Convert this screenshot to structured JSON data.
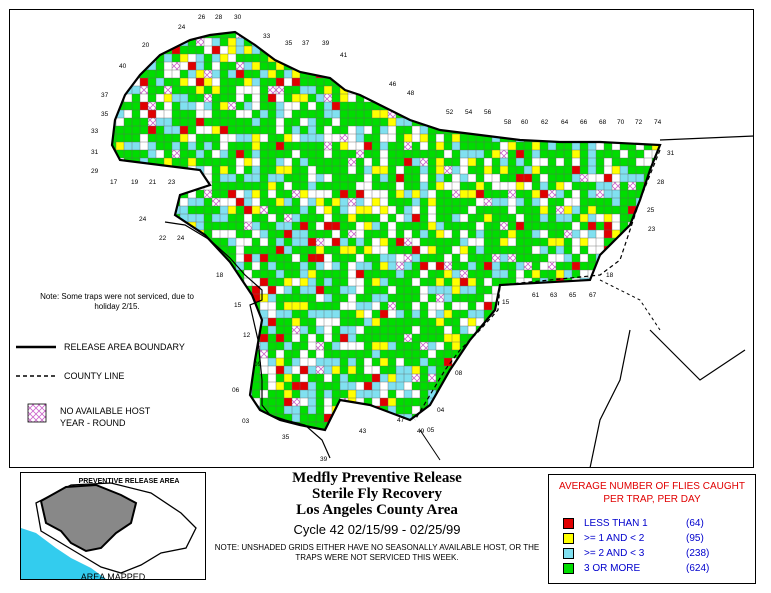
{
  "map": {
    "note": "Note: Some traps were not serviced, due to holiday 2/15.",
    "legend_lines": {
      "release_boundary": "RELEASE AREA BOUNDARY",
      "county_line": "COUNTY LINE",
      "no_host": "NO AVAILABLE HOST YEAR - ROUND"
    },
    "grid_labels": [
      "24",
      "26",
      "28",
      "30",
      "20",
      "33",
      "35",
      "37",
      "39",
      "41",
      "40",
      "37",
      "35",
      "46",
      "48",
      "33",
      "31",
      "29",
      "17",
      "19",
      "21",
      "23",
      "52",
      "54",
      "56",
      "58",
      "60",
      "62",
      "64",
      "66",
      "68",
      "70",
      "72",
      "74",
      "31",
      "28",
      "24",
      "25",
      "22",
      "24",
      "23",
      "18",
      "18",
      "15",
      "61",
      "63",
      "65",
      "67",
      "15",
      "12",
      "09",
      "08",
      "06",
      "03",
      "04",
      "05",
      "35",
      "39",
      "43",
      "47",
      "49"
    ]
  },
  "title": {
    "line1": "Medfly Preventive Release",
    "line2": "Sterile Fly Recovery",
    "line3": "Los Angeles County Area",
    "cycle": "Cycle 42    02/15/99 - 02/25/99",
    "note": "NOTE: UNSHADED GRIDS EITHER HAVE NO SEASONALLY AVAILABLE HOST, OR THE TRAPS WERE NOT SERVICED THIS WEEK."
  },
  "legend": {
    "header": "AVERAGE NUMBER OF FLIES CAUGHT PER TRAP, PER DAY",
    "items": [
      {
        "label": "LESS THAN 1",
        "count": "(64)",
        "color": "#e00000"
      },
      {
        "label": ">= 1 AND < 2",
        "count": "(95)",
        "color": "#ffff00"
      },
      {
        "label": ">= 2 AND < 3",
        "count": "(238)",
        "color": "#80e0f0"
      },
      {
        "label": "3 OR MORE",
        "count": "(624)",
        "color": "#00dd00"
      }
    ]
  },
  "inset": {
    "title": "PREVENTIVE RELEASE AREA",
    "caption": "AREA MAPPED"
  }
}
